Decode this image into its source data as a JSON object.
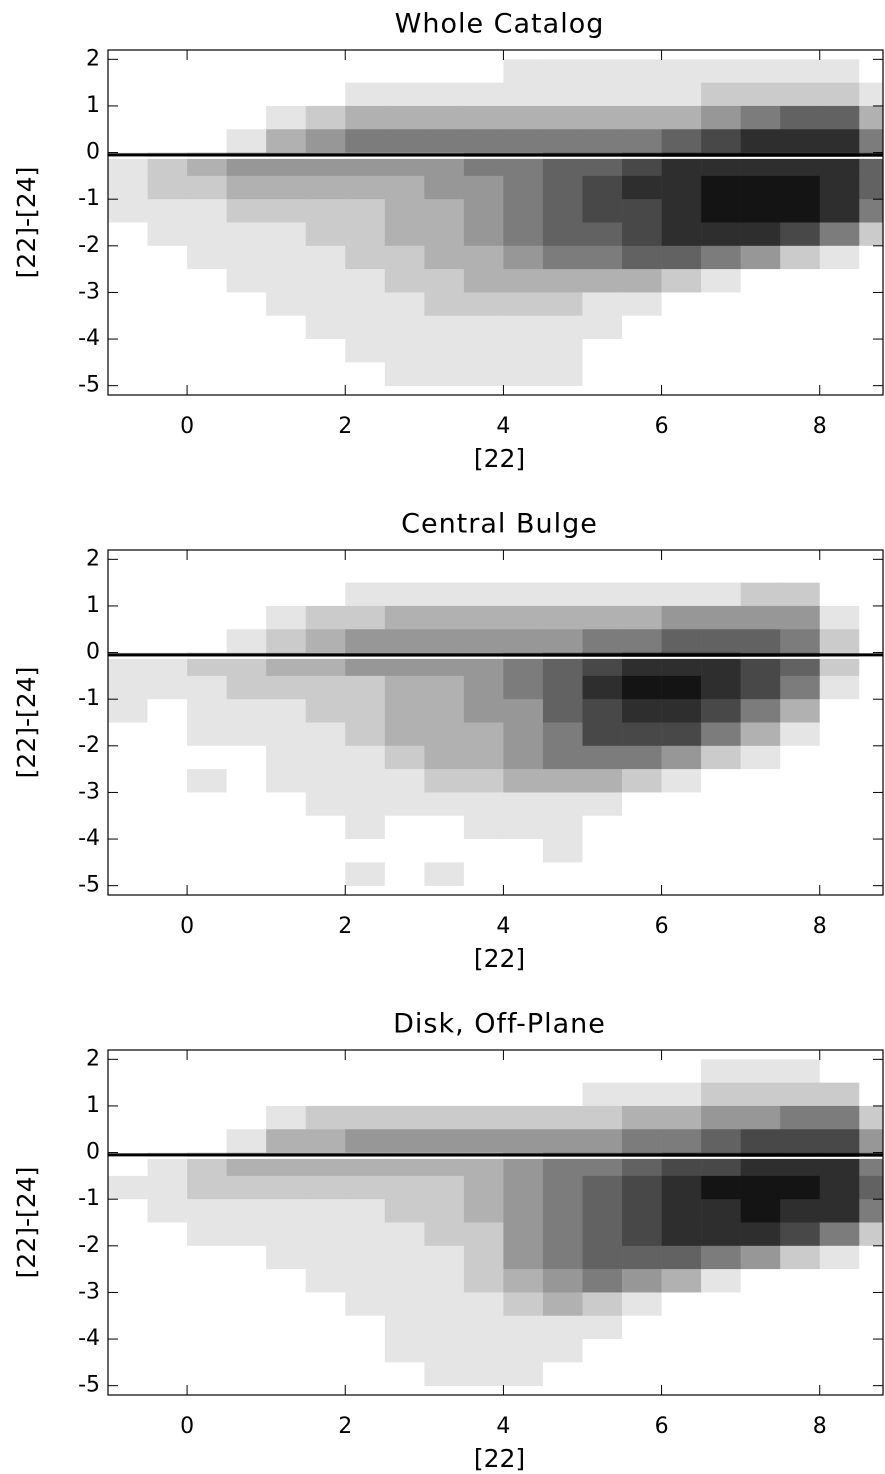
{
  "chart_data": [
    {
      "type": "heatmap",
      "title": "Whole Catalog",
      "xlabel": "[22]",
      "ylabel": "[22]-[24]",
      "xlim": [
        -1,
        8.8
      ],
      "ylim": [
        -5.2,
        2.2
      ],
      "xticks": [
        0,
        2,
        4,
        6,
        8
      ],
      "yticks": [
        2,
        1,
        0,
        -1,
        -2,
        -3,
        -4,
        -5
      ],
      "hline": -0.05,
      "xbins": [
        -1,
        -0.5,
        0,
        0.5,
        1,
        1.5,
        2,
        2.5,
        3,
        3.5,
        4,
        4.5,
        5,
        5.5,
        6,
        6.5,
        7,
        7.5,
        8,
        8.5,
        9
      ],
      "ybins": [
        2,
        1.5,
        1,
        0.5,
        0,
        -0.5,
        -1,
        -1.5,
        -2,
        -2.5,
        -3,
        -3.5,
        -4,
        -4.5,
        -5
      ],
      "z": [
        [
          0,
          0,
          0,
          0,
          0,
          0,
          0,
          0,
          0,
          0,
          1,
          1,
          1,
          1,
          1,
          1,
          1,
          1,
          1,
          0
        ],
        [
          0,
          0,
          0,
          0,
          0,
          0,
          1,
          1,
          1,
          1,
          1,
          1,
          1,
          1,
          1,
          2,
          2,
          2,
          2,
          1
        ],
        [
          0,
          0,
          0,
          0,
          1,
          2,
          3,
          3,
          3,
          3,
          3,
          3,
          3,
          3,
          3,
          4,
          5,
          6,
          6,
          3
        ],
        [
          0,
          0,
          0,
          1,
          3,
          4,
          5,
          5,
          5,
          5,
          5,
          5,
          5,
          5,
          6,
          7,
          8,
          8,
          8,
          5
        ],
        [
          1,
          2,
          3,
          4,
          4,
          4,
          4,
          4,
          4,
          5,
          5,
          6,
          6,
          7,
          8,
          8,
          8,
          8,
          8,
          6
        ],
        [
          1,
          2,
          2,
          3,
          3,
          3,
          3,
          3,
          4,
          4,
          5,
          6,
          7,
          8,
          8,
          9,
          9,
          9,
          8,
          6
        ],
        [
          1,
          1,
          1,
          2,
          2,
          2,
          2,
          3,
          3,
          4,
          5,
          6,
          7,
          7,
          8,
          9,
          9,
          9,
          8,
          5
        ],
        [
          0,
          1,
          1,
          1,
          1,
          2,
          2,
          3,
          3,
          4,
          5,
          6,
          6,
          7,
          8,
          8,
          8,
          7,
          5,
          2
        ],
        [
          0,
          0,
          1,
          1,
          1,
          1,
          2,
          2,
          3,
          3,
          4,
          5,
          5,
          6,
          6,
          5,
          4,
          2,
          1,
          0
        ],
        [
          0,
          0,
          0,
          1,
          1,
          1,
          1,
          2,
          2,
          3,
          3,
          3,
          3,
          3,
          2,
          1,
          0,
          0,
          0,
          0
        ],
        [
          0,
          0,
          0,
          0,
          1,
          1,
          1,
          1,
          2,
          2,
          2,
          2,
          1,
          1,
          0,
          0,
          0,
          0,
          0,
          0
        ],
        [
          0,
          0,
          0,
          0,
          0,
          1,
          1,
          1,
          1,
          1,
          1,
          1,
          1,
          0,
          0,
          0,
          0,
          0,
          0,
          0
        ],
        [
          0,
          0,
          0,
          0,
          0,
          0,
          1,
          1,
          1,
          1,
          1,
          1,
          0,
          0,
          0,
          0,
          0,
          0,
          0,
          0
        ],
        [
          0,
          0,
          0,
          0,
          0,
          0,
          0,
          1,
          1,
          1,
          1,
          1,
          0,
          0,
          0,
          0,
          0,
          0,
          0,
          0
        ]
      ]
    },
    {
      "type": "heatmap",
      "title": "Central Bulge",
      "xlabel": "[22]",
      "ylabel": "[22]-[24]",
      "xlim": [
        -1,
        8.8
      ],
      "ylim": [
        -5.2,
        2.2
      ],
      "xticks": [
        0,
        2,
        4,
        6,
        8
      ],
      "yticks": [
        2,
        1,
        0,
        -1,
        -2,
        -3,
        -4,
        -5
      ],
      "hline": -0.05,
      "xbins": [
        -1,
        -0.5,
        0,
        0.5,
        1,
        1.5,
        2,
        2.5,
        3,
        3.5,
        4,
        4.5,
        5,
        5.5,
        6,
        6.5,
        7,
        7.5,
        8,
        8.5,
        9
      ],
      "ybins": [
        2,
        1.5,
        1,
        0.5,
        0,
        -0.5,
        -1,
        -1.5,
        -2,
        -2.5,
        -3,
        -3.5,
        -4,
        -4.5,
        -5
      ],
      "z": [
        [
          0,
          0,
          0,
          0,
          0,
          0,
          0,
          0,
          0,
          0,
          0,
          0,
          0,
          0,
          0,
          0,
          0,
          0,
          0,
          0
        ],
        [
          0,
          0,
          0,
          0,
          0,
          0,
          1,
          1,
          1,
          1,
          1,
          1,
          1,
          1,
          1,
          1,
          2,
          2,
          0,
          0
        ],
        [
          0,
          0,
          0,
          0,
          1,
          2,
          2,
          3,
          3,
          3,
          3,
          3,
          3,
          3,
          4,
          4,
          4,
          4,
          1,
          0
        ],
        [
          0,
          0,
          0,
          1,
          2,
          3,
          4,
          4,
          4,
          4,
          4,
          4,
          5,
          5,
          6,
          6,
          6,
          5,
          2,
          0
        ],
        [
          1,
          1,
          2,
          2,
          3,
          3,
          4,
          4,
          4,
          4,
          5,
          6,
          7,
          8,
          8,
          8,
          7,
          6,
          2,
          0
        ],
        [
          1,
          1,
          1,
          2,
          2,
          2,
          2,
          3,
          3,
          4,
          5,
          6,
          8,
          9,
          9,
          8,
          7,
          5,
          1,
          0
        ],
        [
          1,
          0,
          1,
          1,
          1,
          2,
          2,
          3,
          3,
          4,
          4,
          6,
          7,
          8,
          8,
          7,
          5,
          3,
          0,
          0
        ],
        [
          0,
          0,
          1,
          1,
          1,
          1,
          2,
          3,
          3,
          3,
          4,
          5,
          7,
          7,
          7,
          5,
          3,
          1,
          0,
          0
        ],
        [
          0,
          0,
          0,
          0,
          1,
          1,
          1,
          2,
          3,
          3,
          4,
          5,
          5,
          5,
          4,
          2,
          1,
          0,
          0,
          0
        ],
        [
          0,
          0,
          1,
          0,
          1,
          1,
          1,
          1,
          2,
          2,
          3,
          3,
          3,
          2,
          1,
          0,
          0,
          0,
          0,
          0
        ],
        [
          0,
          0,
          0,
          0,
          0,
          1,
          1,
          1,
          1,
          1,
          1,
          1,
          1,
          0,
          0,
          0,
          0,
          0,
          0,
          0
        ],
        [
          0,
          0,
          0,
          0,
          0,
          0,
          1,
          0,
          0,
          1,
          1,
          1,
          0,
          0,
          0,
          0,
          0,
          0,
          0,
          0
        ],
        [
          0,
          0,
          0,
          0,
          0,
          0,
          0,
          0,
          0,
          0,
          0,
          1,
          0,
          0,
          0,
          0,
          0,
          0,
          0,
          0
        ],
        [
          0,
          0,
          0,
          0,
          0,
          0,
          1,
          0,
          1,
          0,
          0,
          0,
          0,
          0,
          0,
          0,
          0,
          0,
          0,
          0
        ]
      ]
    },
    {
      "type": "heatmap",
      "title": "Disk, Off-Plane",
      "xlabel": "[22]",
      "ylabel": "[22]-[24]",
      "xlim": [
        -1,
        8.8
      ],
      "ylim": [
        -5.2,
        2.2
      ],
      "xticks": [
        0,
        2,
        4,
        6,
        8
      ],
      "yticks": [
        2,
        1,
        0,
        -1,
        -2,
        -3,
        -4,
        -5
      ],
      "hline": -0.05,
      "xbins": [
        -1,
        -0.5,
        0,
        0.5,
        1,
        1.5,
        2,
        2.5,
        3,
        3.5,
        4,
        4.5,
        5,
        5.5,
        6,
        6.5,
        7,
        7.5,
        8,
        8.5,
        9
      ],
      "ybins": [
        2,
        1.5,
        1,
        0.5,
        0,
        -0.5,
        -1,
        -1.5,
        -2,
        -2.5,
        -3,
        -3.5,
        -4,
        -4.5,
        -5
      ],
      "z": [
        [
          0,
          0,
          0,
          0,
          0,
          0,
          0,
          0,
          0,
          0,
          0,
          0,
          0,
          0,
          0,
          1,
          1,
          1,
          0,
          0
        ],
        [
          0,
          0,
          0,
          0,
          0,
          0,
          0,
          0,
          0,
          0,
          0,
          0,
          1,
          1,
          1,
          2,
          2,
          2,
          2,
          0
        ],
        [
          0,
          0,
          0,
          0,
          1,
          2,
          2,
          2,
          2,
          2,
          2,
          2,
          2,
          3,
          3,
          4,
          4,
          5,
          5,
          2
        ],
        [
          0,
          0,
          0,
          1,
          3,
          3,
          4,
          4,
          4,
          4,
          4,
          4,
          4,
          5,
          5,
          6,
          7,
          7,
          7,
          4
        ],
        [
          0,
          1,
          2,
          3,
          3,
          3,
          3,
          3,
          3,
          3,
          4,
          5,
          5,
          6,
          7,
          7,
          8,
          8,
          8,
          5
        ],
        [
          1,
          1,
          2,
          2,
          2,
          2,
          2,
          2,
          2,
          3,
          4,
          5,
          6,
          7,
          8,
          9,
          9,
          9,
          8,
          6
        ],
        [
          0,
          1,
          1,
          1,
          1,
          1,
          1,
          2,
          2,
          3,
          4,
          5,
          6,
          7,
          8,
          8,
          9,
          8,
          8,
          5
        ],
        [
          0,
          0,
          1,
          1,
          1,
          1,
          1,
          1,
          2,
          2,
          4,
          5,
          6,
          7,
          8,
          8,
          8,
          7,
          5,
          2
        ],
        [
          0,
          0,
          0,
          0,
          1,
          1,
          1,
          1,
          1,
          2,
          4,
          5,
          6,
          6,
          6,
          5,
          4,
          2,
          1,
          0
        ],
        [
          0,
          0,
          0,
          0,
          0,
          1,
          1,
          1,
          1,
          2,
          3,
          4,
          5,
          4,
          3,
          1,
          0,
          0,
          0,
          0
        ],
        [
          0,
          0,
          0,
          0,
          0,
          0,
          1,
          1,
          1,
          1,
          2,
          3,
          2,
          1,
          0,
          0,
          0,
          0,
          0,
          0
        ],
        [
          0,
          0,
          0,
          0,
          0,
          0,
          0,
          1,
          1,
          1,
          1,
          1,
          1,
          0,
          0,
          0,
          0,
          0,
          0,
          0
        ],
        [
          0,
          0,
          0,
          0,
          0,
          0,
          0,
          1,
          1,
          1,
          1,
          1,
          0,
          0,
          0,
          0,
          0,
          0,
          0,
          0
        ],
        [
          0,
          0,
          0,
          0,
          0,
          0,
          0,
          0,
          1,
          1,
          1,
          0,
          0,
          0,
          0,
          0,
          0,
          0,
          0,
          0
        ]
      ]
    }
  ]
}
